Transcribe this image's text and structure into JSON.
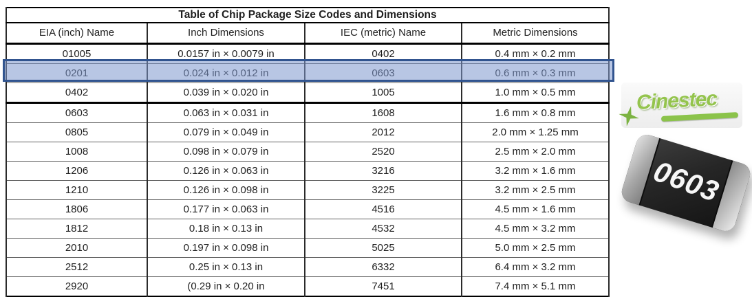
{
  "table": {
    "title": "Table of Chip Package Size Codes and Dimensions",
    "columns": [
      "EIA (inch) Name",
      "Inch Dimensions",
      "IEC (metric) Name",
      "Metric Dimensions"
    ],
    "rows": [
      [
        "01005",
        "0.0157 in × 0.0079 in",
        "0402",
        "0.4 mm × 0.2 mm"
      ],
      [
        "0201",
        "0.024 in × 0.012 in",
        "0603",
        "0.6 mm × 0.3 mm"
      ],
      [
        "0402",
        "0.039 in × 0.020 in",
        "1005",
        "1.0 mm × 0.5 mm"
      ],
      [
        "0603",
        "0.063 in × 0.031 in",
        "1608",
        "1.6 mm × 0.8 mm"
      ],
      [
        "0805",
        "0.079 in × 0.049 in",
        "2012",
        "2.0 mm × 1.25 mm"
      ],
      [
        "1008",
        "0.098 in × 0.079 in",
        "2520",
        "2.5 mm × 2.0 mm"
      ],
      [
        "1206",
        "0.126 in × 0.063 in",
        "3216",
        "3.2 mm × 1.6 mm"
      ],
      [
        "1210",
        "0.126 in × 0.098 in",
        "3225",
        "3.2 mm × 2.5 mm"
      ],
      [
        "1806",
        "0.177 in × 0.063 in",
        "4516",
        "4.5 mm × 1.6 mm"
      ],
      [
        "1812",
        "0.18 in × 0.13 in",
        "4532",
        "4.5 mm × 3.2 mm"
      ],
      [
        "2010",
        "0.197 in × 0.098 in",
        "5025",
        "5.0 mm × 2.5 mm"
      ],
      [
        "2512",
        "0.25 in × 0.13 in",
        "6332",
        "6.4 mm × 3.2 mm"
      ],
      [
        "2920",
        "(0.29 in × 0.20 in",
        "7451",
        "7.4 mm × 5.1 mm"
      ]
    ],
    "highlighted_row_index": 1,
    "thick_border_after_row_index": 2,
    "highlight_fill_color": "#7d98cd",
    "highlight_border_color": "#31548f"
  },
  "logo": {
    "brand_text": "Cinestec",
    "brand_color": "#8bc34a"
  },
  "chip_photo": {
    "label": "0603",
    "body_color": "#262626",
    "cap_color": "#b5b5b5"
  }
}
